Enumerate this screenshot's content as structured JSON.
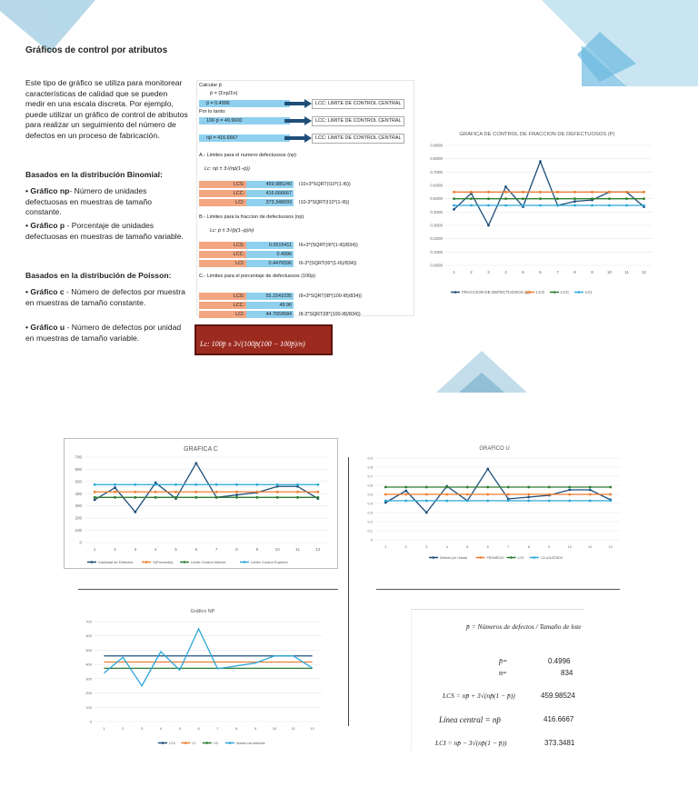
{
  "page": {
    "title": "Gráficos de control por atributos",
    "intro": "Este tipo de gráfico se utiliza para monitorear características de calidad que se pueden medir en una escala discreta. Por ejemplo, puede utilizar un gráfico de control de atributos para realizar un seguimiento del número de defectos en un proceso de fabricación.",
    "binomial_heading": "Basados en la distribución Binomial:",
    "np_label": "• Gráfico np",
    "np_text": "- Número de unidades defectuosas en muestras de tamaño constante.",
    "p_label": "• Gráfico p",
    "p_text": " - Porcentaje de unidades defectuosas en muestras de tamaño variable.",
    "poisson_heading": "Basados en la distribución de Poisson:",
    "c_label": "• Gráfico c",
    "c_text": " - Número de defectos por muestra en muestras de tamaño constante.",
    "u_label": "• Gráfico u",
    "u_text": " - Número de defectos por unidad en muestras de tamaño variable."
  },
  "sheet": {
    "calc_label": "Calcular p̄",
    "pbar_formula": "p̄ = (Σnp/Σn)",
    "pbar_value": "p̄ = 0.4996",
    "lcc_label": "LCC: LIMITE DE CONTROL CENTRAL",
    "por_lo_tanto": "Por lo tanto:",
    "np_calc": "100·p̄ = 49.9600",
    "npbar_calc": "np̄ = 416.6667",
    "section_a": "A.- Limites para el numero defectuosos (np)",
    "formula_a": "Lc: np̄ ± 3√(np̄(1−p̄))",
    "a_rows": [
      {
        "label": "LCS:",
        "value": "459.985240",
        "formula": "I10+3*SQRT(I10*(1-I6))"
      },
      {
        "label": "LCC:",
        "value": "416.666667",
        "formula": ""
      },
      {
        "label": "LCI:",
        "value": "373.348093",
        "formula": "I10-3*SQRT(I10*(1-I6))"
      }
    ],
    "section_b": "B.- Limites para la fraccion de defectuosos (np)",
    "formula_b": "Lc: p̄ ± 3√(p̄(1−p̄)/n)",
    "b_rows": [
      {
        "label": "LCS:",
        "value": "0.5515411",
        "formula": "I6+3*(SQRT(I6*(1-I6)/834))"
      },
      {
        "label": "LCC:",
        "value": "0.4996",
        "formula": ""
      },
      {
        "label": "LCI:",
        "value": "0.4476596",
        "formula": "I6-3*(SQRT(I6*(1-I6)/834))"
      }
    ],
    "section_c": "C.- Limites para el porcentaje de defectuosos (100p)",
    "c_rows": [
      {
        "label": "LCS:",
        "value": "55.1541035",
        "formula": "I8+3*SQRT(I8*(100-I8)/834))"
      },
      {
        "label": "LCC:",
        "value": "49.96",
        "formula": ""
      },
      {
        "label": "LCI:",
        "value": "44.7659584",
        "formula": "I8-3*SQRT(I8*(100-I8)/834))"
      }
    ],
    "red_formula": "Lc: 100p̄ ± 3√(100p̄(100 − 100p̄)/n)"
  },
  "summary": {
    "pbar_def": "p̄ = Números de defectos / Tamaño de lote",
    "pbar_label": "p̄=",
    "pbar_value": "0.4996",
    "n_label": "n=",
    "n_value": "834",
    "lcs_label": "LCS = np̄ + 3√(np̄(1 − p̄))",
    "lcs_value": "459.98524",
    "central_label": "Línea central = np̄",
    "central_value": "416.6667",
    "lci_label": "LCI = np̄ − 3√(np̄(1 − p̄))",
    "lci_value": "373.3481"
  },
  "colors": {
    "navy": "#1f4e79",
    "orange": "#ed7d31",
    "green": "#2e7d32",
    "sky": "#2aa7d8",
    "deco": "#8ec9e6"
  },
  "chart_data": [
    {
      "id": "p",
      "type": "line",
      "title": "GRAFICA DE CONTROL DE FRACCION DE DEFECTUOSOS (P)",
      "categories": [
        "1",
        "2",
        "3",
        "4",
        "5",
        "6",
        "7",
        "8",
        "9",
        "10",
        "11",
        "12"
      ],
      "ylim": [
        0,
        0.9
      ],
      "yticks": [
        "0.0000",
        "0.1000",
        "0.2000",
        "0.3000",
        "0.4000",
        "0.5000",
        "0.6000",
        "0.7000",
        "0.8000",
        "0.9000"
      ],
      "series": [
        {
          "name": "FRACCION DE DEFECTUOSOS (p)",
          "color": "#1f4e79",
          "values": [
            0.42,
            0.54,
            0.3,
            0.59,
            0.44,
            0.78,
            0.45,
            0.48,
            0.49,
            0.55,
            0.55,
            0.44
          ]
        },
        {
          "name": "LCS",
          "color": "#ed7d31",
          "values": [
            0.55,
            0.55,
            0.55,
            0.55,
            0.55,
            0.55,
            0.55,
            0.55,
            0.55,
            0.55,
            0.55,
            0.55
          ]
        },
        {
          "name": "LCC",
          "color": "#2e7d32",
          "values": [
            0.5,
            0.5,
            0.5,
            0.5,
            0.5,
            0.5,
            0.5,
            0.5,
            0.5,
            0.5,
            0.5,
            0.5
          ]
        },
        {
          "name": "LCI",
          "color": "#2aa7d8",
          "values": [
            0.45,
            0.45,
            0.45,
            0.45,
            0.45,
            0.45,
            0.45,
            0.45,
            0.45,
            0.45,
            0.45,
            0.45
          ]
        }
      ]
    },
    {
      "id": "c",
      "type": "line",
      "title": "GRAFICA C",
      "categories": [
        "1",
        "2",
        "3",
        "4",
        "5",
        "6",
        "7",
        "8",
        "9",
        "10",
        "11",
        "12"
      ],
      "ylim": [
        0,
        700
      ],
      "yticks": [
        "0",
        "100",
        "200",
        "300",
        "400",
        "500",
        "600",
        "700"
      ],
      "series": [
        {
          "name": "Cantidad de Defectos",
          "color": "#1f4e79",
          "values": [
            350,
            450,
            250,
            490,
            360,
            650,
            370,
            390,
            410,
            460,
            460,
            360
          ]
        },
        {
          "name": "X(Promedio)",
          "color": "#ed7d31",
          "values": [
            415,
            415,
            415,
            415,
            415,
            415,
            415,
            415,
            415,
            415,
            415,
            415
          ]
        },
        {
          "name": "Limite Control Inferior",
          "color": "#2e7d32",
          "values": [
            370,
            370,
            370,
            370,
            370,
            370,
            370,
            370,
            370,
            370,
            370,
            370
          ]
        },
        {
          "name": "Limite Control Superior",
          "color": "#2aa7d8",
          "values": [
            475,
            475,
            475,
            475,
            475,
            475,
            475,
            475,
            475,
            475,
            475,
            475
          ]
        }
      ]
    },
    {
      "id": "u",
      "type": "line",
      "title": "GRAFICO U",
      "categories": [
        "1",
        "2",
        "3",
        "4",
        "5",
        "6",
        "7",
        "8",
        "9",
        "10",
        "11",
        "12"
      ],
      "ylim": [
        0,
        0.9
      ],
      "yticks": [
        "0",
        "0.1",
        "0.2",
        "0.3",
        "0.4",
        "0.5",
        "0.6",
        "0.7",
        "0.8",
        "0.9"
      ],
      "series": [
        {
          "name": "Defecto por Unidad",
          "color": "#1f4e79",
          "values": [
            0.41,
            0.54,
            0.3,
            0.59,
            0.43,
            0.78,
            0.45,
            0.47,
            0.49,
            0.55,
            0.55,
            0.44
          ]
        },
        {
          "name": "PROMEDIO",
          "color": "#ed7d31",
          "values": [
            0.5,
            0.5,
            0.5,
            0.5,
            0.5,
            0.5,
            0.5,
            0.5,
            0.5,
            0.5,
            0.5,
            0.5
          ]
        },
        {
          "name": "LCS",
          "color": "#2e7d32",
          "values": [
            0.58,
            0.58,
            0.58,
            0.58,
            0.58,
            0.58,
            0.58,
            0.58,
            0.58,
            0.58,
            0.58,
            0.58
          ]
        },
        {
          "name": "LCI AJUSTADO",
          "color": "#2aa7d8",
          "values": [
            0.43,
            0.43,
            0.43,
            0.43,
            0.43,
            0.43,
            0.43,
            0.43,
            0.43,
            0.43,
            0.43,
            0.43
          ]
        }
      ]
    },
    {
      "id": "np",
      "type": "line",
      "title": "Gráfico NP",
      "categories": [
        "1",
        "2",
        "3",
        "4",
        "5",
        "6",
        "7",
        "8",
        "9",
        "10",
        "11",
        "12"
      ],
      "ylim": [
        0,
        700
      ],
      "yticks": [
        "0",
        "100",
        "200",
        "300",
        "400",
        "500",
        "600",
        "700"
      ],
      "series": [
        {
          "name": "LCS",
          "color": "#1f4e79",
          "values": [
            460,
            460,
            460,
            460,
            460,
            460,
            460,
            460,
            460,
            460,
            460,
            460
          ]
        },
        {
          "name": "LC",
          "color": "#ed7d31",
          "values": [
            417,
            417,
            417,
            417,
            417,
            417,
            417,
            417,
            417,
            417,
            417,
            417
          ]
        },
        {
          "name": "LCI",
          "color": "#2e7d32",
          "values": [
            373,
            373,
            373,
            373,
            373,
            373,
            373,
            373,
            373,
            373,
            373,
            373
          ]
        },
        {
          "name": "Número de defectos",
          "color": "#2aa7d8",
          "values": [
            340,
            450,
            250,
            490,
            360,
            650,
            370,
            390,
            410,
            460,
            460,
            375
          ]
        }
      ]
    }
  ]
}
